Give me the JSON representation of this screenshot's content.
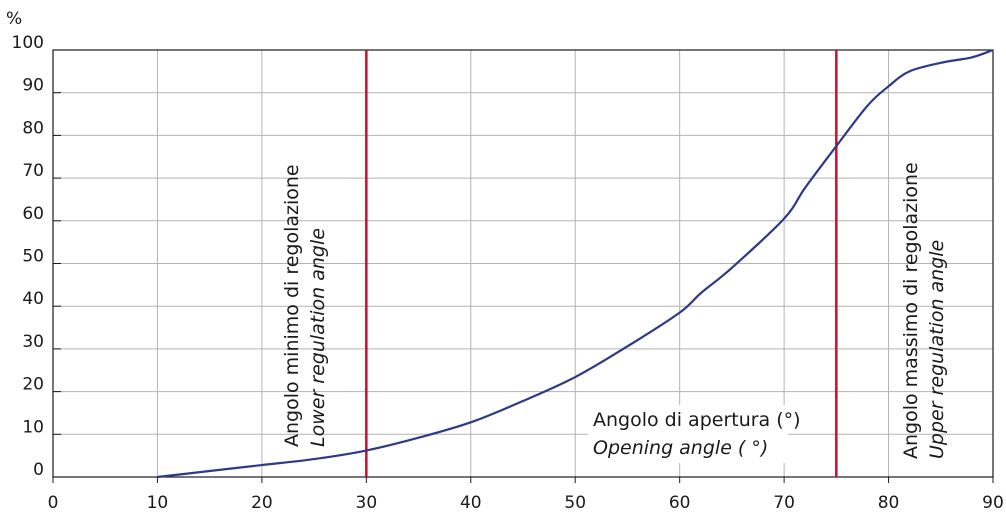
{
  "chart_data": {
    "type": "line",
    "ylabel": "%",
    "xlabel_it": "Angolo di apertura (°)",
    "xlabel_en": "Opening angle ( °)",
    "xlim": [
      0,
      90
    ],
    "ylim": [
      0,
      100
    ],
    "x_ticks": [
      0,
      10,
      20,
      30,
      40,
      50,
      60,
      70,
      80,
      90
    ],
    "y_ticks": [
      0,
      10,
      20,
      30,
      40,
      50,
      60,
      70,
      80,
      90,
      100
    ],
    "grid": true,
    "series": [
      {
        "color": "#2e3a87",
        "x": [
          10,
          15,
          20,
          25,
          30,
          35,
          40,
          45,
          50,
          55,
          60,
          62,
          65,
          70,
          72,
          75,
          78,
          80,
          82,
          85,
          88,
          90
        ],
        "y": [
          0,
          1.4,
          2.8,
          4.2,
          6.2,
          9.2,
          12.8,
          17.8,
          23.4,
          30.6,
          38.5,
          43.0,
          49.0,
          60.5,
          67.7,
          77.5,
          87.0,
          91.5,
          95.0,
          97.0,
          98.3,
          100
        ]
      }
    ],
    "vlines": [
      {
        "x": 30,
        "color": "#c8102e",
        "label_it": "Angolo minimo di regolazione",
        "label_en": "Lower regulation angle"
      },
      {
        "x": 75,
        "color": "#c8102e",
        "label_it": "Angolo massimo di regolazione",
        "label_en": "Upper regulation angle"
      }
    ]
  }
}
